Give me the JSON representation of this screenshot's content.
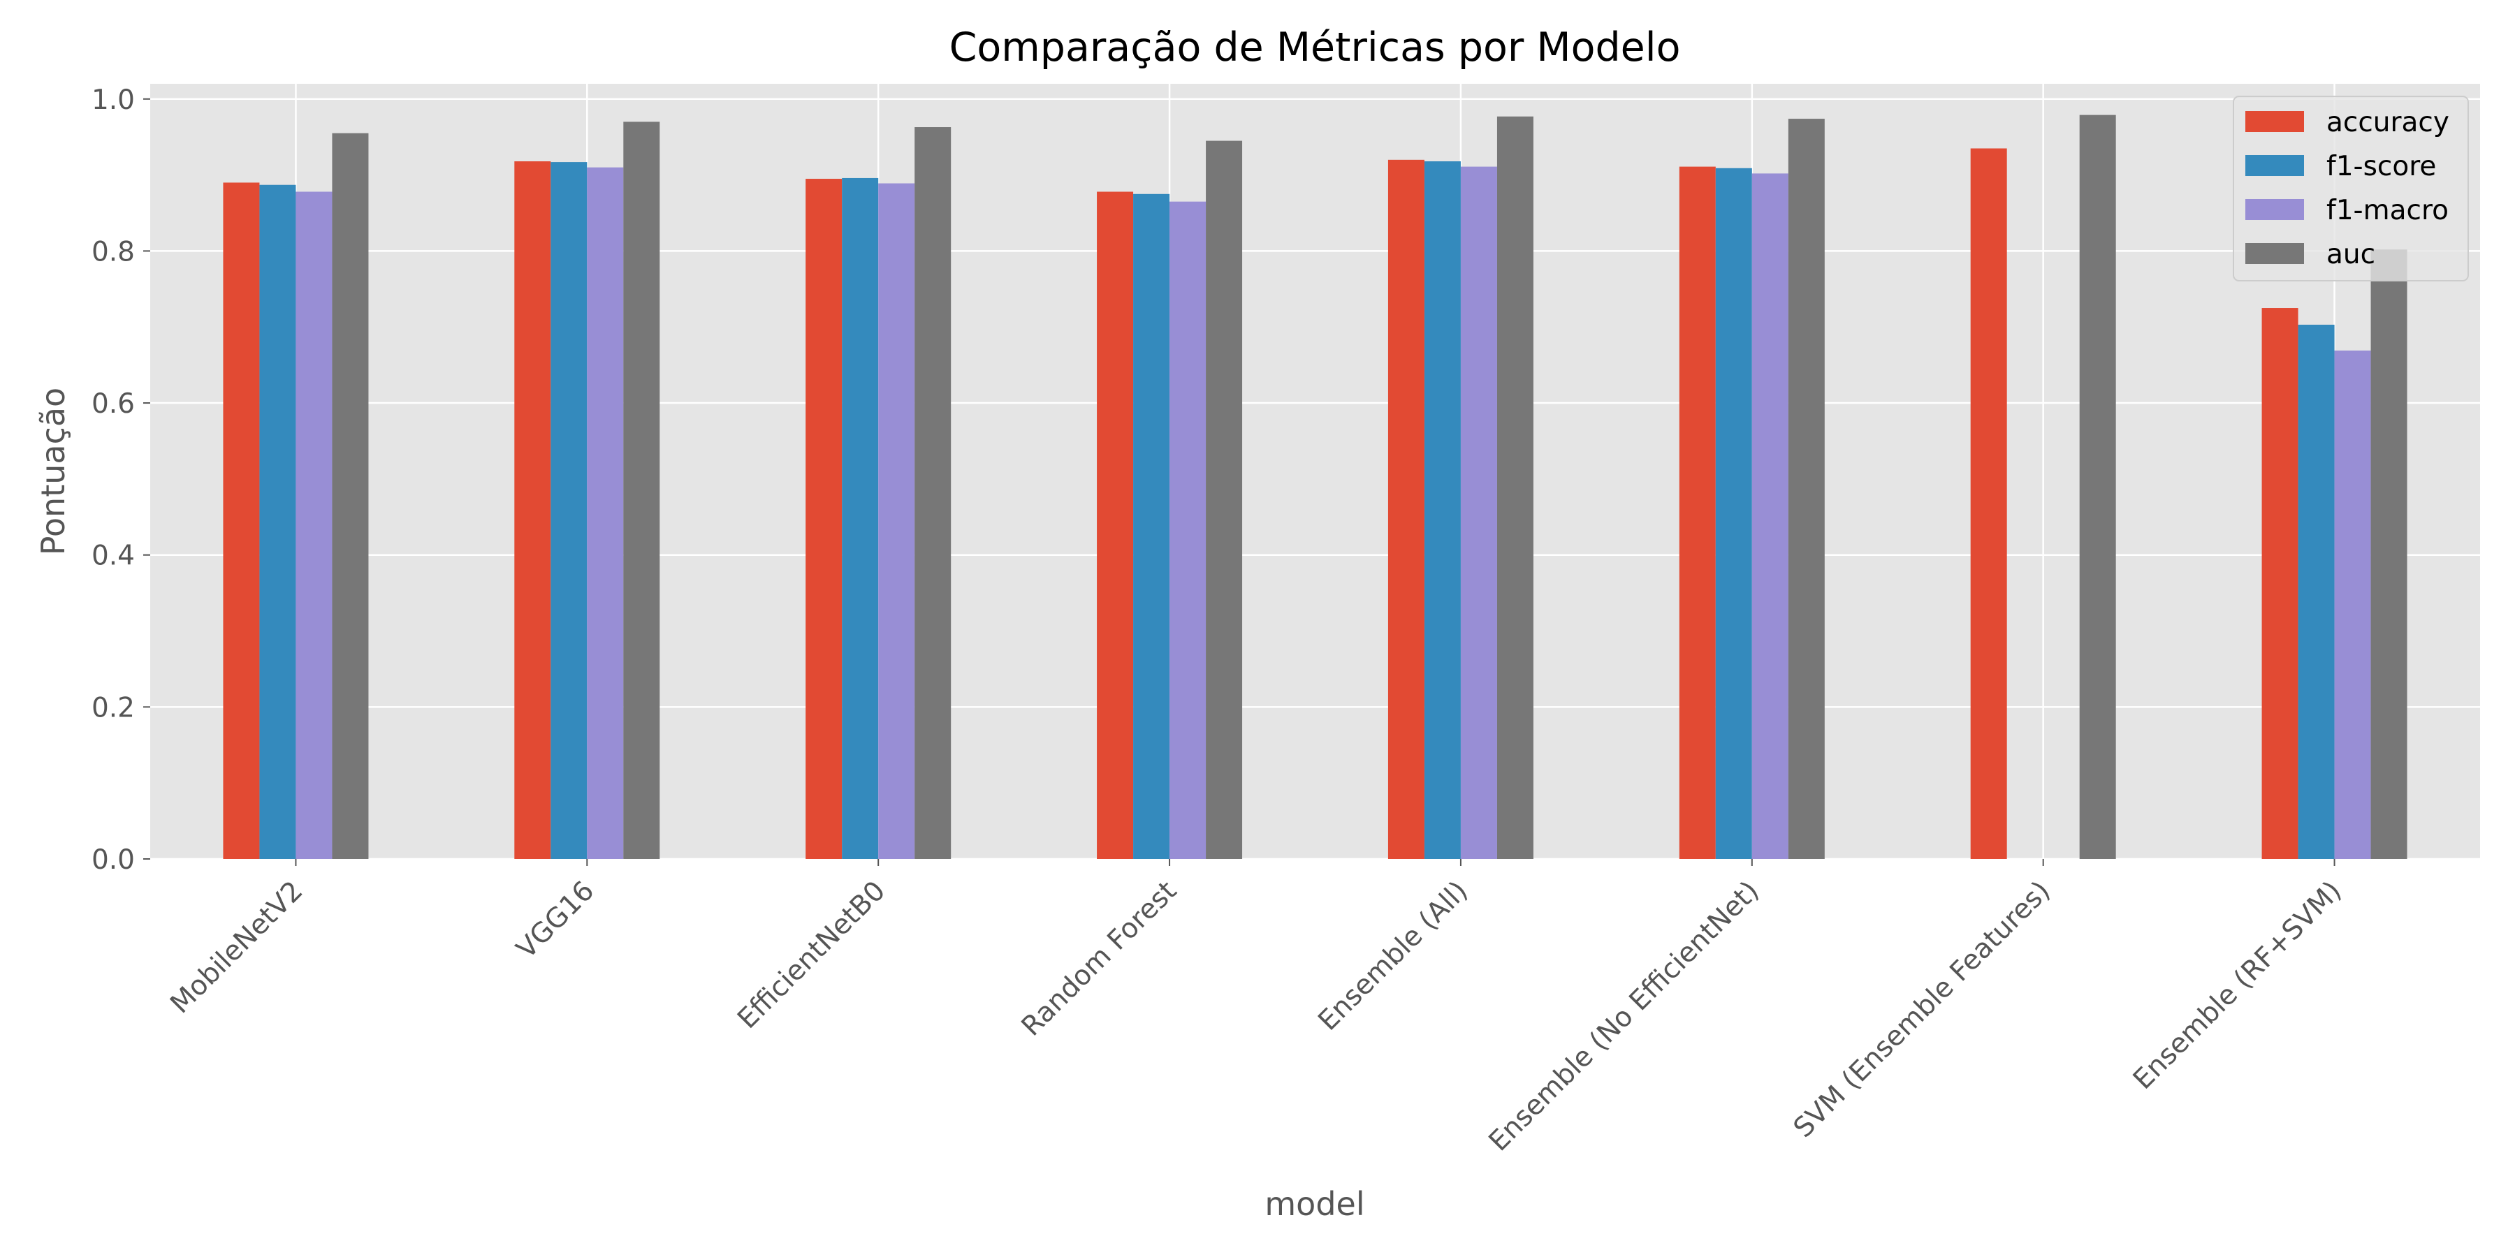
{
  "chart_data": {
    "type": "bar",
    "title": "Comparação de Métricas por Modelo",
    "xlabel": "model",
    "ylabel": "Pontuação",
    "ylim": [
      0,
      1.02
    ],
    "yticks": [
      "0.0",
      "0.2",
      "0.4",
      "0.6",
      "0.8",
      "1.0"
    ],
    "grid": true,
    "legend_position": "top-right",
    "categories": [
      "MobileNetV2",
      "VGG16",
      "EfficientNetB0",
      "Random Forest",
      "Ensemble (All)",
      "Ensemble (No EfficientNet)",
      "SVM (Ensemble Features)",
      "Ensemble (RF+SVM)"
    ],
    "series": [
      {
        "name": "accuracy",
        "color": "#E24A33",
        "values": [
          0.89,
          0.918,
          0.895,
          0.878,
          0.92,
          0.911,
          0.935,
          0.725
        ]
      },
      {
        "name": "f1-score",
        "color": "#348ABD",
        "values": [
          0.887,
          0.917,
          0.896,
          0.875,
          0.918,
          0.909,
          null,
          0.703
        ]
      },
      {
        "name": "f1-macro",
        "color": "#988ED5",
        "values": [
          0.878,
          0.91,
          0.889,
          0.865,
          0.911,
          0.902,
          null,
          0.669
        ]
      },
      {
        "name": "auc",
        "color": "#777777",
        "values": [
          0.955,
          0.97,
          0.963,
          0.945,
          0.977,
          0.974,
          0.979,
          0.802
        ]
      }
    ]
  }
}
